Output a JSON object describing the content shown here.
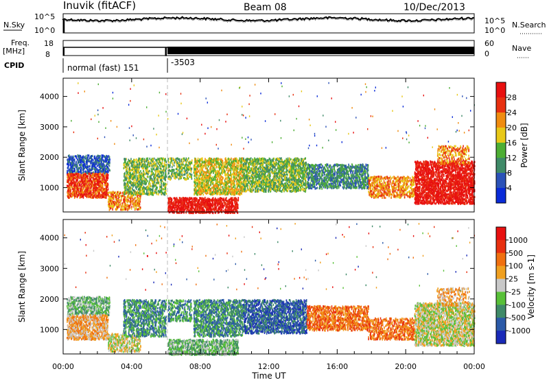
{
  "header": {
    "station": "Inuvik (fitACF)",
    "beam": "Beam 08",
    "date": "10/Dec/2013"
  },
  "noise_panel": {
    "left_label": "N.Sky",
    "right_label": "N.Search",
    "tick_top": "10^5",
    "tick_bottom": "10^0"
  },
  "freq_panel": {
    "left_label_1": "Freq.",
    "left_label_2": "[MHz]",
    "left_tick_top": "18",
    "left_tick_bottom": "8",
    "right_label": "Nave",
    "right_tick_top": "60",
    "right_tick_bottom": "0"
  },
  "cpid": {
    "label": "CPID",
    "segments": [
      {
        "text": "normal (fast) 151",
        "start_hour": 0.0
      },
      {
        "text": "-3503",
        "start_hour": 6.0
      }
    ]
  },
  "x_axis": {
    "label": "Time UT",
    "ticks": [
      "00:00",
      "04:00",
      "08:00",
      "12:00",
      "16:00",
      "20:00",
      "00:00"
    ],
    "range_hours": [
      0,
      24
    ]
  },
  "chart_data": [
    {
      "type": "heatmap",
      "name": "power",
      "ylabel": "Slant Range [km]",
      "yticks": [
        "1000",
        "2000",
        "3000",
        "4000"
      ],
      "ylim": [
        200,
        4600
      ],
      "colorbar_label": "Power [dB]",
      "colorbar_ticks": [
        "4",
        "8",
        "12",
        "16",
        "20",
        "24",
        "28"
      ],
      "colors": [
        "#0a2bd8",
        "#2b52b8",
        "#3f8a68",
        "#4dae34",
        "#e8c818",
        "#f08c10",
        "#e83010",
        "#e81010"
      ]
    },
    {
      "type": "heatmap",
      "name": "velocity",
      "ylabel": "Slant Range [km]",
      "yticks": [
        "1000",
        "2000",
        "3000",
        "4000"
      ],
      "ylim": [
        200,
        4600
      ],
      "colorbar_label": "Velocity [m s-1]",
      "colorbar_ticks": [
        "1000",
        "500",
        "100",
        "25",
        "-25",
        "-100",
        "-500",
        "-1000"
      ],
      "colors": [
        "#1a2ab8",
        "#2b5aa8",
        "#3f8a68",
        "#58c038",
        "#c8c8c8",
        "#f0a020",
        "#f07010",
        "#e83010",
        "#e81010"
      ]
    }
  ]
}
